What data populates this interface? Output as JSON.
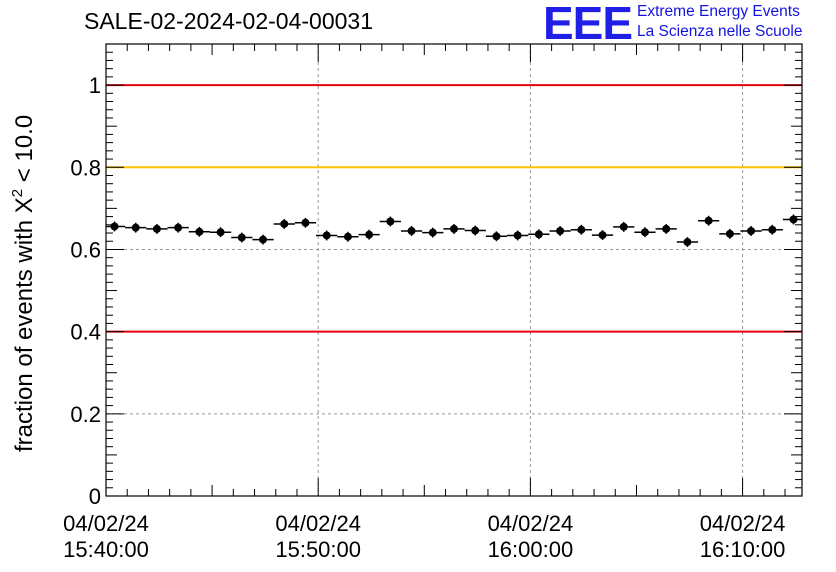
{
  "title": "SALE-02-2024-02-04-00031",
  "logo": {
    "mark": "EEE",
    "line1": "Extreme Energy Events",
    "line2": "La Scienza nelle Scuole"
  },
  "colors": {
    "red_line": "#e8000b",
    "orange_line": "#ffc000",
    "marker": "#000000",
    "grid": "#9a9a9a",
    "logo_blue": "#1f1fe6"
  },
  "chart_data": {
    "type": "scatter",
    "title": "SALE-02-2024-02-04-00031",
    "ylabel_prefix": "fraction of events with ",
    "ylabel_symbol": "X",
    "ylabel_sup": "2",
    "ylabel_suffix": " < 10.0",
    "xlabel": "",
    "ylim": [
      0,
      1.1
    ],
    "xlim_minutes": [
      0,
      32.8
    ],
    "yticks": [
      {
        "value": 0,
        "label": "0"
      },
      {
        "value": 0.2,
        "label": "0.2"
      },
      {
        "value": 0.4,
        "label": "0.4"
      },
      {
        "value": 0.6,
        "label": "0.6"
      },
      {
        "value": 0.8,
        "label": "0.8"
      },
      {
        "value": 1,
        "label": "1"
      }
    ],
    "xticks": [
      {
        "minutes": 0,
        "date": "04/02/24",
        "time": "15:40:00"
      },
      {
        "minutes": 10,
        "date": "04/02/24",
        "time": "15:50:00"
      },
      {
        "minutes": 20,
        "date": "04/02/24",
        "time": "16:00:00"
      },
      {
        "minutes": 30,
        "date": "04/02/24",
        "time": "16:10:00"
      }
    ],
    "grid": true,
    "reference_lines": [
      {
        "y": 1.0,
        "color": "#e8000b"
      },
      {
        "y": 0.8,
        "color": "#ffc000"
      },
      {
        "y": 0.4,
        "color": "#e8000b"
      }
    ],
    "bin_width_minutes": 1.0,
    "points": [
      {
        "x": 0.4,
        "y": 0.656
      },
      {
        "x": 1.4,
        "y": 0.653
      },
      {
        "x": 2.4,
        "y": 0.65
      },
      {
        "x": 3.4,
        "y": 0.653
      },
      {
        "x": 4.4,
        "y": 0.643
      },
      {
        "x": 5.4,
        "y": 0.642
      },
      {
        "x": 6.4,
        "y": 0.629
      },
      {
        "x": 7.4,
        "y": 0.624
      },
      {
        "x": 8.4,
        "y": 0.662
      },
      {
        "x": 9.4,
        "y": 0.665
      },
      {
        "x": 10.4,
        "y": 0.634
      },
      {
        "x": 11.4,
        "y": 0.631
      },
      {
        "x": 12.4,
        "y": 0.636
      },
      {
        "x": 13.4,
        "y": 0.668
      },
      {
        "x": 14.4,
        "y": 0.645
      },
      {
        "x": 15.4,
        "y": 0.641
      },
      {
        "x": 16.4,
        "y": 0.65
      },
      {
        "x": 17.4,
        "y": 0.646
      },
      {
        "x": 18.4,
        "y": 0.632
      },
      {
        "x": 19.4,
        "y": 0.634
      },
      {
        "x": 20.4,
        "y": 0.637
      },
      {
        "x": 21.4,
        "y": 0.645
      },
      {
        "x": 22.4,
        "y": 0.648
      },
      {
        "x": 23.4,
        "y": 0.635
      },
      {
        "x": 24.4,
        "y": 0.655
      },
      {
        "x": 25.4,
        "y": 0.642
      },
      {
        "x": 26.4,
        "y": 0.65
      },
      {
        "x": 27.4,
        "y": 0.618
      },
      {
        "x": 28.4,
        "y": 0.67
      },
      {
        "x": 29.4,
        "y": 0.638
      },
      {
        "x": 30.4,
        "y": 0.645
      },
      {
        "x": 31.4,
        "y": 0.648
      },
      {
        "x": 32.4,
        "y": 0.673
      }
    ],
    "y_error": 0.012
  }
}
